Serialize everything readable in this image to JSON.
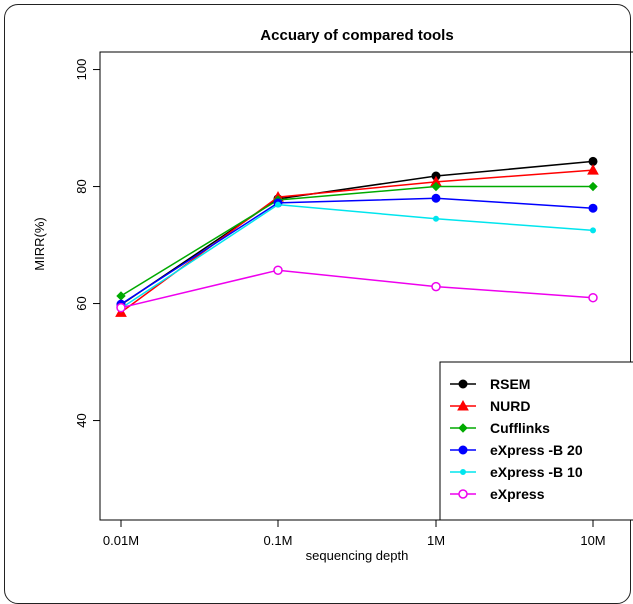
{
  "chart_data": {
    "type": "line",
    "title": "Accuary of compared tools",
    "xlabel": "sequencing depth",
    "ylabel": "MIRR(%)",
    "categories": [
      "0.01M",
      "0.1M",
      "1M",
      "10M"
    ],
    "ylim": [
      23,
      103
    ],
    "yticks": [
      40,
      60,
      80,
      100
    ],
    "grid": false,
    "legend_position": "bottom-right",
    "series": [
      {
        "name": "RSEM",
        "color": "#000000",
        "marker": "filled-circle",
        "values": [
          59.8,
          77.9,
          81.8,
          84.3
        ]
      },
      {
        "name": "NURD",
        "color": "#ff0000",
        "marker": "filled-triangle",
        "values": [
          58.5,
          78.2,
          80.8,
          82.8
        ]
      },
      {
        "name": "Cufflinks",
        "color": "#00aa00",
        "marker": "filled-diamond",
        "values": [
          61.3,
          77.7,
          80.0,
          80.0
        ]
      },
      {
        "name": "eXpress -B 20",
        "color": "#0000ff",
        "marker": "filled-circle",
        "values": [
          59.9,
          77.2,
          78.0,
          76.3
        ]
      },
      {
        "name": "eXpress -B 10",
        "color": "#00e5ee",
        "marker": "small-filled-circle",
        "values": [
          59.2,
          76.9,
          74.5,
          72.5
        ]
      },
      {
        "name": "eXpress",
        "color": "#ee00ee",
        "marker": "open-circle",
        "values": [
          59.3,
          65.7,
          62.9,
          61.0
        ]
      }
    ]
  }
}
